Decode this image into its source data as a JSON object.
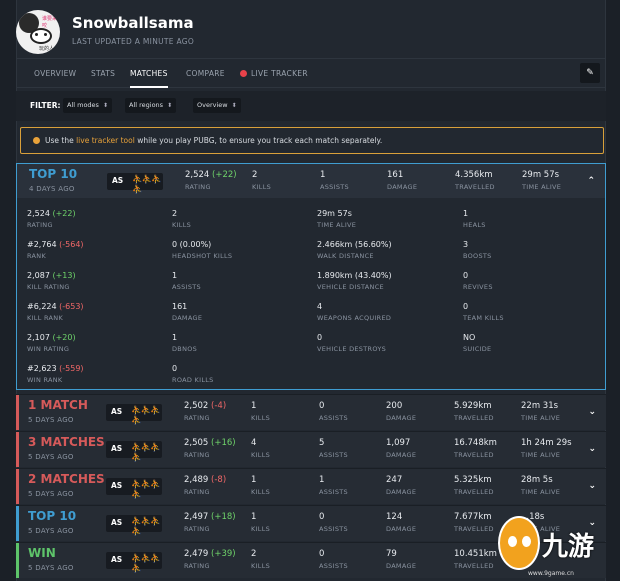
{
  "profile": {
    "name": "Snowballsama",
    "updated": "LAST UPDATED A MINUTE AGO",
    "avatar_tag_top": "谁要来咬",
    "avatar_tag_bottom": "玩的人"
  },
  "nav": {
    "tabs": [
      "OVERVIEW",
      "STATS",
      "MATCHES",
      "COMPARE",
      "LIVE TRACKER"
    ],
    "active": "MATCHES",
    "action_icon": "pin-icon"
  },
  "filter": {
    "label": "FILTER:",
    "selects": [
      "All modes",
      "All regions",
      "Overview"
    ]
  },
  "notice": {
    "pre": "Use the ",
    "link": "live tracker tool",
    "post": " while you play PUBG, to ensure you track each match separately."
  },
  "colors": {
    "top10": "#3f9dd1",
    "loss": "#d65a5a",
    "win": "#5ec46a",
    "accent": "#e8a23a",
    "live": "#e8424a"
  },
  "rows": [
    {
      "title": "TOP 10",
      "sub": "4 DAYS AGO",
      "mode": "AS",
      "rating": "2,524",
      "delta": "(+22)",
      "kills": "2",
      "assists": "1",
      "damage": "161",
      "travelled": "4.356km",
      "time": "29m 57s",
      "chevron": "⌃"
    },
    {
      "title": "1 MATCH",
      "sub": "5 DAYS AGO",
      "mode": "AS",
      "rating": "2,502",
      "delta": "(-4)",
      "kills": "1",
      "assists": "0",
      "damage": "200",
      "travelled": "5.929km",
      "time": "22m 31s",
      "chevron": "⌄"
    },
    {
      "title": "3 MATCHES",
      "sub": "5 DAYS AGO",
      "mode": "AS",
      "rating": "2,505",
      "delta": "(+16)",
      "kills": "4",
      "assists": "5",
      "damage": "1,097",
      "travelled": "16.748km",
      "time": "1h 24m 29s",
      "chevron": "⌄"
    },
    {
      "title": "2 MATCHES",
      "sub": "5 DAYS AGO",
      "mode": "AS",
      "rating": "2,489",
      "delta": "(-8)",
      "kills": "1",
      "assists": "1",
      "damage": "247",
      "travelled": "5.325km",
      "time": "28m 5s",
      "chevron": "⌄"
    },
    {
      "title": "TOP 10",
      "sub": "5 DAYS AGO",
      "mode": "AS",
      "rating": "2,497",
      "delta": "(+18)",
      "kills": "1",
      "assists": "0",
      "damage": "124",
      "travelled": "7.677km",
      "time": "...18s",
      "chevron": "⌄"
    },
    {
      "title": "WIN",
      "sub": "5 DAYS AGO",
      "mode": "AS",
      "rating": "2,479",
      "delta": "(+39)",
      "kills": "2",
      "assists": "0",
      "damage": "79",
      "travelled": "10.451km",
      "time": "",
      "chevron": ""
    }
  ],
  "labels": {
    "rating": "RATING",
    "kills": "KILLS",
    "assists": "ASSISTS",
    "damage": "DAMAGE",
    "travelled": "TRAVELLED",
    "time": "TIME ALIVE"
  },
  "detail": {
    "col1": [
      {
        "v": "2,524",
        "d": "(+22)",
        "k": "RATING"
      },
      {
        "v": "#2,764",
        "d": "(-564)",
        "k": "RANK"
      },
      {
        "v": "2,087",
        "d": "(+13)",
        "k": "KILL RATING"
      },
      {
        "v": "#6,224",
        "d": "(-653)",
        "k": "KILL RANK"
      },
      {
        "v": "2,107",
        "d": "(+20)",
        "k": "WIN RATING"
      },
      {
        "v": "#2,623",
        "d": "(-559)",
        "k": "WIN RANK"
      }
    ],
    "col2": [
      {
        "v": "2",
        "k": "KILLS"
      },
      {
        "v": "0 (0.00%)",
        "k": "HEADSHOT KILLS"
      },
      {
        "v": "1",
        "k": "ASSISTS"
      },
      {
        "v": "161",
        "k": "DAMAGE"
      },
      {
        "v": "1",
        "k": "DBNOS"
      },
      {
        "v": "0",
        "k": "ROAD KILLS"
      }
    ],
    "col3": [
      {
        "v": "29m 57s",
        "k": "TIME ALIVE"
      },
      {
        "v": "2.466km (56.60%)",
        "k": "WALK DISTANCE"
      },
      {
        "v": "1.890km (43.40%)",
        "k": "VEHICLE DISTANCE"
      },
      {
        "v": "4",
        "k": "WEAPONS ACQUIRED"
      },
      {
        "v": "0",
        "k": "VEHICLE DESTROYS"
      }
    ],
    "col4": [
      {
        "v": "1",
        "k": "HEALS"
      },
      {
        "v": "3",
        "k": "BOOSTS"
      },
      {
        "v": "0",
        "k": "REVIVES"
      },
      {
        "v": "0",
        "k": "TEAM KILLS"
      },
      {
        "v": "NO",
        "k": "SUICIDE"
      }
    ]
  },
  "watermark": {
    "text": "九游",
    "url": "www.9game.cn"
  }
}
